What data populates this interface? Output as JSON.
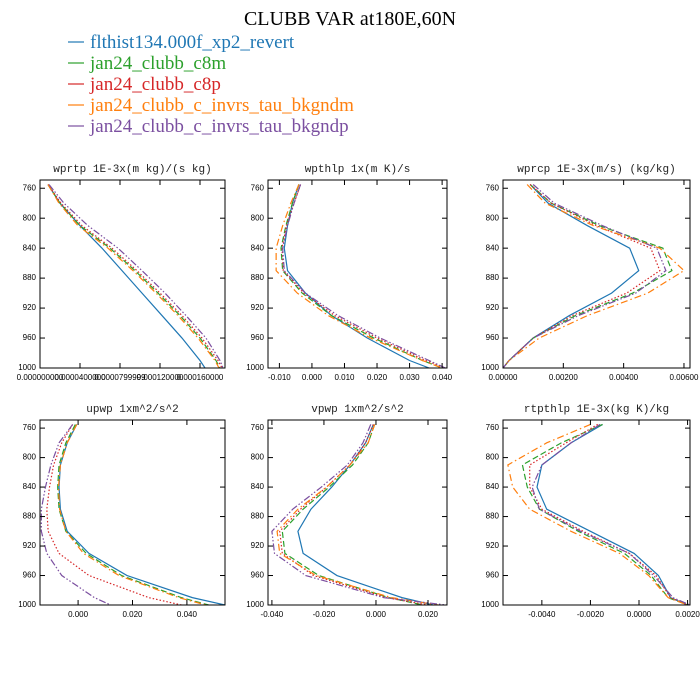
{
  "title": "CLUBB VAR at180E,60N",
  "chart_data": [
    {
      "type": "line",
      "title": "wprtp  1E-3x(m kg)/(s kg)",
      "y": [
        755,
        780,
        810,
        840,
        870,
        900,
        930,
        960,
        990,
        1000
      ],
      "ylim": [
        1000,
        749
      ],
      "yticks": [
        760,
        800,
        840,
        880,
        920,
        960,
        1000
      ],
      "xlim": [
        0,
        0.000185
      ],
      "xticks": [
        {
          "value": 0,
          "label": "0.000000000"
        },
        {
          "value": 4e-05,
          "label": "0.0000400000"
        },
        {
          "value": 8e-05,
          "label": "0.0000799999"
        },
        {
          "value": 0.00012,
          "label": "0.000120000"
        },
        {
          "value": 0.00016,
          "label": "0.000160000"
        }
      ],
      "series": [
        {
          "name": "flthist134.000f_xp2_revert",
          "color": "#1f77b4",
          "style": "solid",
          "values": [
            8e-06,
            2e-05,
            4e-05,
            6.2e-05,
            8.2e-05,
            0.000102,
            0.000122,
            0.000142,
            0.00016,
            0.000165
          ]
        },
        {
          "name": "jan24_clubb_c8m",
          "color": "#2ca02c",
          "style": "dashed",
          "values": [
            8e-06,
            2e-05,
            4e-05,
            7e-05,
            9.5e-05,
            0.000118,
            0.00014,
            0.00016,
            0.000176,
            0.00018
          ]
        },
        {
          "name": "jan24_clubb_c8p",
          "color": "#d62728",
          "style": "dotted",
          "values": [
            8e-06,
            2.1e-05,
            4.2e-05,
            7.2e-05,
            9.7e-05,
            0.00012,
            0.000142,
            0.000162,
            0.000178,
            0.000182
          ]
        },
        {
          "name": "jan24_clubb_c_invrs_tau_bkgndm",
          "color": "#ff7f0e",
          "style": "dashdot",
          "values": [
            8e-06,
            1.9e-05,
            3.8e-05,
            6.8e-05,
            9.3e-05,
            0.000116,
            0.000138,
            0.000158,
            0.000175,
            0.000179
          ]
        },
        {
          "name": "jan24_clubb_c_invrs_tau_bkgndp",
          "color": "#7b4fa0",
          "style": "dashdotdot",
          "values": [
            9e-06,
            2.4e-05,
            4.8e-05,
            7.8e-05,
            0.000102,
            0.000125,
            0.000146,
            0.000166,
            0.00018,
            0.000183
          ]
        }
      ]
    },
    {
      "type": "line",
      "title": "wpthlp  1x(m K)/s",
      "y": [
        755,
        780,
        810,
        840,
        870,
        900,
        930,
        960,
        990,
        1000
      ],
      "ylim": [
        1000,
        749
      ],
      "yticks": [
        760,
        800,
        840,
        880,
        920,
        960,
        1000
      ],
      "xlim": [
        -0.0135,
        0.0415
      ],
      "xticks": [
        {
          "value": -0.01,
          "label": "-0.010"
        },
        {
          "value": 0,
          "label": "0.000"
        },
        {
          "value": 0.01,
          "label": "0.010"
        },
        {
          "value": 0.02,
          "label": "0.020"
        },
        {
          "value": 0.03,
          "label": "0.030"
        },
        {
          "value": 0.04,
          "label": "0.040"
        }
      ],
      "series": [
        {
          "name": "flthist134.000f_xp2_revert",
          "color": "#1f77b4",
          "style": "solid",
          "values": [
            -0.004,
            -0.006,
            -0.0075,
            -0.0085,
            -0.0075,
            -0.002,
            0.006,
            0.017,
            0.03,
            0.036
          ]
        },
        {
          "name": "jan24_clubb_c8m",
          "color": "#2ca02c",
          "style": "dashed",
          "values": [
            -0.004,
            -0.006,
            -0.008,
            -0.0095,
            -0.009,
            -0.003,
            0.006,
            0.019,
            0.034,
            0.04
          ]
        },
        {
          "name": "jan24_clubb_c8p",
          "color": "#d62728",
          "style": "dotted",
          "values": [
            -0.0035,
            -0.0055,
            -0.0078,
            -0.0092,
            -0.0088,
            -0.0025,
            0.007,
            0.02,
            0.035,
            0.041
          ]
        },
        {
          "name": "jan24_clubb_c_invrs_tau_bkgndm",
          "color": "#ff7f0e",
          "style": "dashdot",
          "values": [
            -0.004,
            -0.0065,
            -0.009,
            -0.011,
            -0.011,
            -0.0045,
            0.005,
            0.018,
            0.034,
            0.04
          ]
        },
        {
          "name": "jan24_clubb_c_invrs_tau_bkgndp",
          "color": "#7b4fa0",
          "style": "dashdotdot",
          "values": [
            -0.0035,
            -0.0055,
            -0.0075,
            -0.009,
            -0.0085,
            -0.002,
            0.008,
            0.021,
            0.036,
            0.041
          ]
        }
      ]
    },
    {
      "type": "line",
      "title": "wprcp  1E-3x(m/s) (kg/kg)",
      "y": [
        755,
        780,
        810,
        840,
        870,
        900,
        930,
        960,
        990,
        1000
      ],
      "ylim": [
        1000,
        749
      ],
      "yticks": [
        760,
        800,
        840,
        880,
        920,
        960,
        1000
      ],
      "xlim": [
        0,
        0.0062
      ],
      "xticks": [
        {
          "value": 0,
          "label": "0.00000"
        },
        {
          "value": 0.002,
          "label": "0.00200"
        },
        {
          "value": 0.004,
          "label": "0.00400"
        },
        {
          "value": 0.006,
          "label": "0.00600"
        }
      ],
      "series": [
        {
          "name": "flthist134.000f_xp2_revert",
          "color": "#1f77b4",
          "style": "solid",
          "values": [
            0.0009,
            0.0015,
            0.0028,
            0.0042,
            0.0045,
            0.0036,
            0.0022,
            0.001,
            0.0002,
            0
          ]
        },
        {
          "name": "jan24_clubb_c8m",
          "color": "#2ca02c",
          "style": "dashed",
          "values": [
            0.0009,
            0.0016,
            0.0032,
            0.0053,
            0.0056,
            0.0043,
            0.0024,
            0.001,
            0.0002,
            0
          ]
        },
        {
          "name": "jan24_clubb_c8p",
          "color": "#d62728",
          "style": "dotted",
          "values": [
            0.0009,
            0.0016,
            0.0031,
            0.0049,
            0.0052,
            0.0041,
            0.0023,
            0.001,
            0.0002,
            0
          ]
        },
        {
          "name": "jan24_clubb_c_invrs_tau_bkgndm",
          "color": "#ff7f0e",
          "style": "dashdot",
          "values": [
            0.0008,
            0.0014,
            0.003,
            0.0052,
            0.006,
            0.0048,
            0.0028,
            0.0012,
            0.0002,
            0
          ]
        },
        {
          "name": "jan24_clubb_c_invrs_tau_bkgndp",
          "color": "#7b4fa0",
          "style": "dashdotdot",
          "values": [
            0.001,
            0.0017,
            0.0033,
            0.0051,
            0.0054,
            0.0044,
            0.0025,
            0.001,
            0.0002,
            0
          ]
        }
      ]
    },
    {
      "type": "line",
      "title": "upwp  1xm^2/s^2",
      "y": [
        755,
        780,
        810,
        840,
        870,
        900,
        930,
        960,
        990,
        1000
      ],
      "ylim": [
        1000,
        749
      ],
      "yticks": [
        760,
        800,
        840,
        880,
        920,
        960,
        1000
      ],
      "xlim": [
        -0.014,
        0.054
      ],
      "xticks": [
        {
          "value": 0,
          "label": "0.000"
        },
        {
          "value": 0.02,
          "label": "0.020"
        },
        {
          "value": 0.04,
          "label": "0.040"
        }
      ],
      "series": [
        {
          "name": "flthist134.000f_xp2_revert",
          "color": "#1f77b4",
          "style": "solid",
          "values": [
            -0.0005,
            -0.004,
            -0.0065,
            -0.007,
            -0.0065,
            -0.004,
            0.004,
            0.018,
            0.042,
            0.054
          ]
        },
        {
          "name": "jan24_clubb_c8m",
          "color": "#2ca02c",
          "style": "dashed",
          "values": [
            -0.001,
            -0.0045,
            -0.007,
            -0.0075,
            -0.007,
            -0.0045,
            0.003,
            0.016,
            0.038,
            0.048
          ]
        },
        {
          "name": "jan24_clubb_c8p",
          "color": "#d62728",
          "style": "dotted",
          "values": [
            -0.002,
            -0.006,
            -0.009,
            -0.0105,
            -0.0115,
            -0.011,
            -0.007,
            0.004,
            0.026,
            0.038
          ]
        },
        {
          "name": "jan24_clubb_c_invrs_tau_bkgndm",
          "color": "#ff7f0e",
          "style": "dashdot",
          "values": [
            -0.0005,
            -0.004,
            -0.0065,
            -0.0072,
            -0.0068,
            -0.0045,
            0.002,
            0.015,
            0.037,
            0.047
          ]
        },
        {
          "name": "jan24_clubb_c_invrs_tau_bkgndp",
          "color": "#7b4fa0",
          "style": "dashdotdot",
          "values": [
            -0.002,
            -0.007,
            -0.01,
            -0.012,
            -0.0135,
            -0.0135,
            -0.0115,
            -0.006,
            0.006,
            0.012
          ]
        }
      ]
    },
    {
      "type": "line",
      "title": "vpwp  1xm^2/s^2",
      "y": [
        755,
        780,
        810,
        840,
        870,
        900,
        930,
        960,
        990,
        1000
      ],
      "ylim": [
        1000,
        749
      ],
      "yticks": [
        760,
        800,
        840,
        880,
        920,
        960,
        1000
      ],
      "xlim": [
        -0.0415,
        0.0273
      ],
      "xticks": [
        {
          "value": -0.04,
          "label": "-0.040"
        },
        {
          "value": -0.02,
          "label": "-0.020"
        },
        {
          "value": 0,
          "label": "0.000"
        },
        {
          "value": 0.02,
          "label": "0.020"
        }
      ],
      "series": [
        {
          "name": "flthist134.000f_xp2_revert",
          "color": "#1f77b4",
          "style": "solid",
          "values": [
            -0.001,
            -0.004,
            -0.01,
            -0.017,
            -0.025,
            -0.03,
            -0.028,
            -0.015,
            0.01,
            0.022
          ]
        },
        {
          "name": "jan24_clubb_c8m",
          "color": "#2ca02c",
          "style": "dashed",
          "values": [
            -0.0005,
            -0.003,
            -0.009,
            -0.018,
            -0.028,
            -0.036,
            -0.035,
            -0.022,
            0.005,
            0.018
          ]
        },
        {
          "name": "jan24_clubb_c8p",
          "color": "#d62728",
          "style": "dotted",
          "values": [
            -0.001,
            -0.004,
            -0.01,
            -0.019,
            -0.029,
            -0.037,
            -0.036,
            -0.024,
            0.004,
            0.02
          ]
        },
        {
          "name": "jan24_clubb_c_invrs_tau_bkgndm",
          "color": "#ff7f0e",
          "style": "dashdot",
          "values": [
            -0.0005,
            -0.003,
            -0.01,
            -0.019,
            -0.03,
            -0.038,
            -0.037,
            -0.023,
            0.006,
            0.024
          ]
        },
        {
          "name": "jan24_clubb_c_invrs_tau_bkgndp",
          "color": "#7b4fa0",
          "style": "dashdotdot",
          "values": [
            -0.002,
            -0.005,
            -0.011,
            -0.021,
            -0.032,
            -0.04,
            -0.039,
            -0.027,
            0.003,
            0.027
          ]
        }
      ]
    },
    {
      "type": "line",
      "title": "rtpthlp  1E-3x(kg K)/kg",
      "y": [
        755,
        780,
        810,
        840,
        870,
        900,
        930,
        960,
        990,
        1000
      ],
      "ylim": [
        1000,
        749
      ],
      "yticks": [
        760,
        800,
        840,
        880,
        920,
        960,
        1000
      ],
      "xlim": [
        -0.0056,
        0.0021
      ],
      "xticks": [
        {
          "value": -0.004,
          "label": "-0.0040"
        },
        {
          "value": -0.002,
          "label": "-0.0020"
        },
        {
          "value": 0,
          "label": "0.0000"
        },
        {
          "value": 0.002,
          "label": "0.0020"
        }
      ],
      "series": [
        {
          "name": "flthist134.000f_xp2_revert",
          "color": "#1f77b4",
          "style": "solid",
          "values": [
            -0.0015,
            -0.0028,
            -0.004,
            -0.0042,
            -0.0038,
            -0.002,
            -0.0002,
            0.0008,
            0.0013,
            0.002
          ]
        },
        {
          "name": "jan24_clubb_c8m",
          "color": "#2ca02c",
          "style": "dashed",
          "values": [
            -0.0015,
            -0.0032,
            -0.0048,
            -0.0046,
            -0.0041,
            -0.0025,
            -0.0006,
            0.0005,
            0.0012,
            0.002
          ]
        },
        {
          "name": "jan24_clubb_c8p",
          "color": "#d62728",
          "style": "dotted",
          "values": [
            -0.0017,
            -0.003,
            -0.0045,
            -0.0045,
            -0.004,
            -0.0023,
            -0.0004,
            0.0007,
            0.0013,
            0.002
          ]
        },
        {
          "name": "jan24_clubb_c_invrs_tau_bkgndm",
          "color": "#ff7f0e",
          "style": "dashdot",
          "values": [
            -0.002,
            -0.0038,
            -0.0054,
            -0.0052,
            -0.0045,
            -0.0028,
            -0.0008,
            0.0004,
            0.0012,
            0.002
          ]
        },
        {
          "name": "jan24_clubb_c_invrs_tau_bkgndp",
          "color": "#7b4fa0",
          "style": "dashdotdot",
          "values": [
            -0.0016,
            -0.0028,
            -0.004,
            -0.0044,
            -0.0041,
            -0.0024,
            -0.0004,
            0.0006,
            0.0014,
            0.0021
          ]
        }
      ]
    }
  ]
}
